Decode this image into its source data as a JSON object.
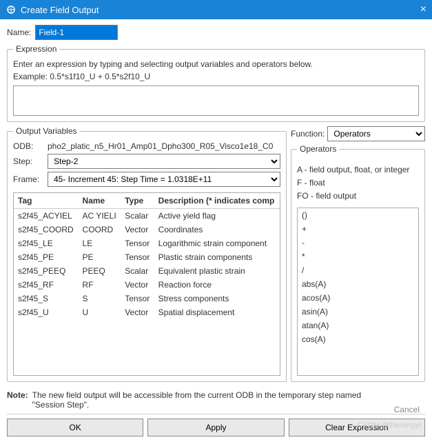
{
  "window": {
    "title": "Create Field Output"
  },
  "name": {
    "label": "Name:",
    "value": "Field-1"
  },
  "expression": {
    "legend": "Expression",
    "hint": "Enter an expression by typing and selecting output variables and operators below.",
    "example_label": "Example:",
    "example": "0.5*s1f10_U + 0.5*s2f10_U"
  },
  "outvars": {
    "legend": "Output Variables",
    "odb_label": "ODB:",
    "odb": "pho2_platic_n5_Hr01_Amp01_Dpho300_R05_Visco1e18_C0",
    "step_label": "Step:",
    "step": "Step-2",
    "frame_label": "Frame:",
    "frame": "45- Increment     45: Step Time =    1.0318E+11",
    "cols": {
      "tag": "Tag",
      "name": "Name",
      "type": "Type",
      "desc": "Description (* indicates comp"
    },
    "rows": [
      {
        "tag": "s2f45_ACYIEL",
        "name": "AC YIELI",
        "type": "Scalar",
        "desc": "Active yield flag"
      },
      {
        "tag": "s2f45_COORD",
        "name": "COORD",
        "type": "Vector",
        "desc": "Coordinates"
      },
      {
        "tag": "s2f45_LE",
        "name": "LE",
        "type": "Tensor",
        "desc": "Logarithmic strain component"
      },
      {
        "tag": "s2f45_PE",
        "name": "PE",
        "type": "Tensor",
        "desc": "Plastic strain components"
      },
      {
        "tag": "s2f45_PEEQ",
        "name": "PEEQ",
        "type": "Scalar",
        "desc": "Equivalent plastic strain"
      },
      {
        "tag": "s2f45_RF",
        "name": "RF",
        "type": "Vector",
        "desc": "Reaction force"
      },
      {
        "tag": "s2f45_S",
        "name": "S",
        "type": "Tensor",
        "desc": "Stress components"
      },
      {
        "tag": "s2f45_U",
        "name": "U",
        "type": "Vector",
        "desc": "Spatial displacement"
      }
    ]
  },
  "func": {
    "label": "Function:",
    "selected": "Operators",
    "legend": "Operators",
    "desc": [
      "A -  field output, float, or integer",
      "F -  float",
      "FO - field output"
    ],
    "items": [
      "()",
      "+",
      "-",
      "*",
      "/",
      "abs(A)",
      "acos(A)",
      "asin(A)",
      "atan(A)",
      "cos(A)"
    ]
  },
  "note": {
    "label": "Note:",
    "text": "The new field output will be accessible from the current ODB in the temporary step named \"Session Step\"."
  },
  "buttons": {
    "ok": "OK",
    "apply": "Apply",
    "clear": "Clear Expression",
    "cancel": "Cancel"
  },
  "watermark": "CSDN @themingyi"
}
